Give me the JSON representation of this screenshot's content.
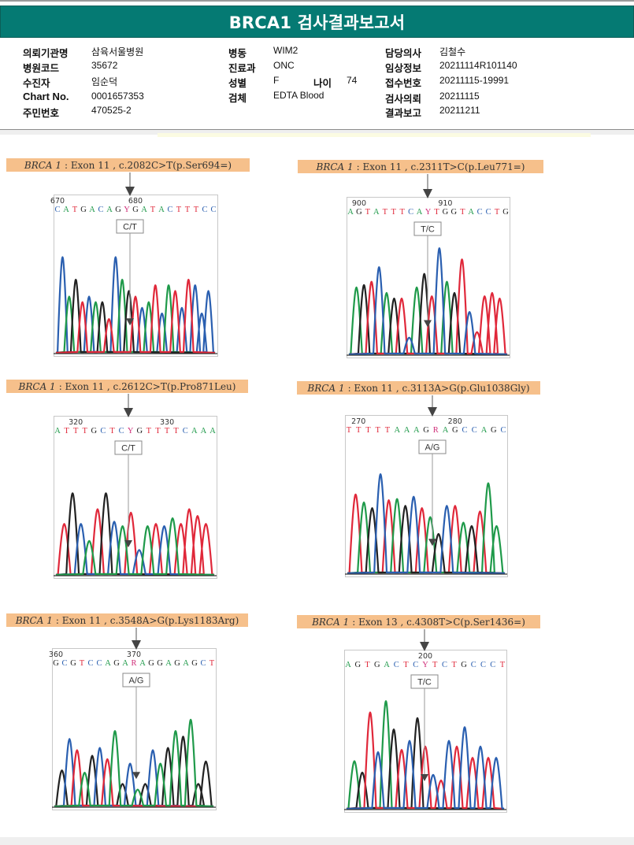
{
  "report": {
    "title": "BRCA1 검사결과보고서",
    "col1": [
      {
        "label": "의뢰기관명",
        "value": "삼육서울병원"
      },
      {
        "label": "병원코드",
        "value": "35672"
      },
      {
        "label": "수진자",
        "value": "임순덕"
      },
      {
        "label": "Chart No.",
        "value": "0001657353"
      },
      {
        "label": "주민번호",
        "value": "470525-2"
      }
    ],
    "col2": [
      {
        "label": "병동",
        "value": "WIM2"
      },
      {
        "label": "진료과",
        "value": "ONC"
      },
      {
        "label": "성별",
        "value": "F"
      },
      {
        "label": "검체",
        "value": "EDTA Blood"
      }
    ],
    "age": {
      "label": "나이",
      "value": "74"
    },
    "col3": [
      {
        "label": "담당의사",
        "value": "김철수"
      },
      {
        "label": "임상정보",
        "value": "20211114R101140"
      },
      {
        "label": "접수번호",
        "value": "20211115-19991"
      },
      {
        "label": "검사의뢰",
        "value": "20211115"
      },
      {
        "label": "결과보고",
        "value": "20211211"
      }
    ]
  },
  "colors": {
    "header": "#057a73",
    "caption_bg": "#f6c08b",
    "A": "#1f9a4a",
    "C": "#2a5fb0",
    "G": "#222222",
    "T": "#e0283a",
    "ambig": "#d0307a"
  },
  "variants": [
    {
      "gene": "BRCA 1",
      "desc": ": Exon 11 , c.2082C>T(p.Ser694=)",
      "pos_labels": [
        {
          "text": "670",
          "idx": 0
        },
        {
          "text": "680",
          "idx": 9
        }
      ],
      "sequence": "CATGACAGYGATACTTTCC",
      "call": "C/T",
      "traces": [
        {
          "base": "C",
          "peaks": [
            0.85,
            0.5,
            0.85,
            0.4,
            0.35,
            0.4,
            0.6,
            0.35,
            0.55
          ]
        },
        {
          "base": "A",
          "peaks": [
            0.5,
            0.45,
            0.65,
            0.45,
            0.6
          ]
        },
        {
          "base": "G",
          "peaks": [
            0.65,
            0.45,
            0.55
          ]
        },
        {
          "base": "T",
          "peaks": [
            0.45,
            0.3,
            0.5,
            0.6,
            0.55,
            0.65
          ]
        }
      ]
    },
    {
      "gene": "BRCA 1",
      "desc": ": Exon 11 , c.2311T>C(p.Leu771=)",
      "pos_labels": [
        {
          "text": "900",
          "idx": 1
        },
        {
          "text": "910",
          "idx": 11
        }
      ],
      "sequence": "AGTATTTCAYTGGTACCTG",
      "call": "T/C",
      "traces": [
        {
          "base": "A",
          "peaks": [
            0.6,
            0.55,
            0.6,
            0.65
          ]
        },
        {
          "base": "G",
          "peaks": [
            0.62,
            0.5,
            0.72,
            0.55
          ]
        },
        {
          "base": "T",
          "peaks": [
            0.65,
            0.5,
            0.52,
            0.85,
            0.2,
            0.52,
            0.55,
            0.5
          ]
        },
        {
          "base": "C",
          "peaks": [
            0.78,
            0.15,
            0.95,
            0.38
          ]
        }
      ]
    },
    {
      "gene": "BRCA 1",
      "desc": ": Exon 11 , c.2612C>T(p.Pro871Leu)",
      "pos_labels": [
        {
          "text": "320",
          "idx": 2
        },
        {
          "text": "330",
          "idx": 12
        }
      ],
      "sequence": "ATTTGCTCYGTTTTCAAA",
      "call": "C/T",
      "traces": [
        {
          "base": "T",
          "peaks": [
            0.45,
            0.58,
            0.55,
            0.45,
            0.45,
            0.58,
            0.52,
            0.45
          ]
        },
        {
          "base": "G",
          "peaks": [
            0.72,
            0.72
          ]
        },
        {
          "base": "C",
          "peaks": [
            0.45,
            0.47,
            0.22,
            0.43
          ]
        },
        {
          "base": "A",
          "peaks": [
            0.3,
            0.43,
            0.43,
            0.5
          ]
        }
      ]
    },
    {
      "gene": "BRCA 1",
      "desc": ": Exon 11 , c.3113A>G(p.Glu1038Gly)",
      "pos_labels": [
        {
          "text": "270",
          "idx": 1
        },
        {
          "text": "280",
          "idx": 11
        }
      ],
      "sequence": "TTTTTAAAGRAGCCAGC",
      "call": "A/G",
      "traces": [
        {
          "base": "T",
          "peaks": [
            0.7,
            0.65,
            0.58,
            0.6,
            0.55
          ]
        },
        {
          "base": "A",
          "peaks": [
            0.63,
            0.66,
            0.5,
            0.45,
            0.8,
            0.42
          ]
        },
        {
          "base": "G",
          "peaks": [
            0.58,
            0.6,
            0.35,
            0.42
          ]
        },
        {
          "base": "C",
          "peaks": [
            0.88,
            0.68,
            0.6
          ]
        }
      ]
    },
    {
      "gene": "BRCA 1",
      "desc": ": Exon 11 , c.3548A>G(p.Lys1183Arg)",
      "pos_labels": [
        {
          "text": "360",
          "idx": 0
        },
        {
          "text": "370",
          "idx": 9
        }
      ],
      "sequence": "GCGTCCAGARAGGAGAGCT",
      "call": "A/G",
      "traces": [
        {
          "base": "G",
          "peaks": [
            0.32,
            0.45,
            0.2,
            0.2,
            0.52,
            0.62,
            0.2,
            0.4
          ]
        },
        {
          "base": "C",
          "peaks": [
            0.6,
            0.52,
            0.38,
            0.5
          ]
        },
        {
          "base": "T",
          "peaks": [
            0.5,
            0.42
          ]
        },
        {
          "base": "A",
          "peaks": [
            0.3,
            0.67,
            0.15,
            0.38,
            0.67,
            0.77
          ]
        }
      ]
    },
    {
      "gene": "BRCA 1",
      "desc": ": Exon 13 , c.4308T>C(p.Ser1436=)",
      "pos_labels": [
        {
          "text": "200",
          "idx": 8
        }
      ],
      "sequence": "AGTGACTCYTCTGCCCT",
      "call": "T/C",
      "traces": [
        {
          "base": "A",
          "peaks": [
            0.42,
            0.95
          ]
        },
        {
          "base": "G",
          "peaks": [
            0.32,
            0.7,
            0.8
          ]
        },
        {
          "base": "T",
          "peaks": [
            0.85,
            0.52,
            0.55,
            0.25,
            0.55,
            0.45,
            0.45
          ]
        },
        {
          "base": "C",
          "peaks": [
            0.5,
            0.6,
            0.3,
            0.6,
            0.72,
            0.55,
            0.45
          ]
        }
      ]
    }
  ]
}
